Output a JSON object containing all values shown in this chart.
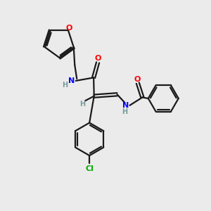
{
  "background_color": "#ebebeb",
  "bond_color": "#1a1a1a",
  "atom_colors": {
    "O": "#ff0000",
    "N": "#0000ff",
    "H": "#7a9a9a",
    "Cl": "#00aa00",
    "C": "#1a1a1a"
  },
  "figsize": [
    3.0,
    3.0
  ],
  "dpi": 100
}
